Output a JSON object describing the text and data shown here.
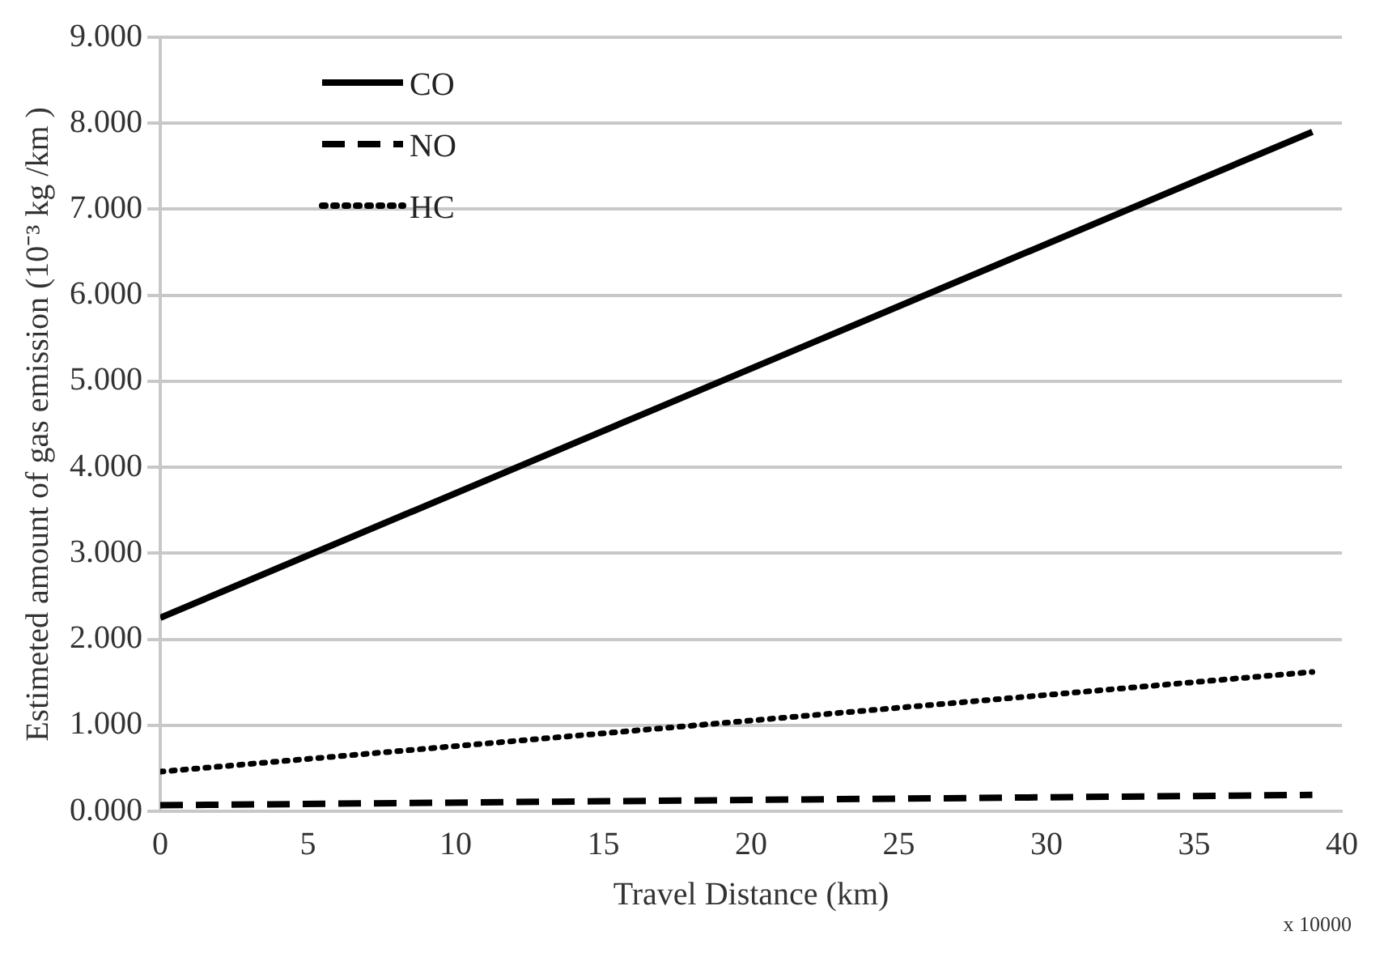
{
  "chart_data": {
    "type": "line",
    "xlabel": "Travel Distance (km)",
    "ylabel": "Estimeted amount of gas emission (10⁻³ kg /km )",
    "x": [
      0,
      39
    ],
    "series": [
      {
        "name": "CO",
        "color": "#000000",
        "values": [
          2.25,
          7.9
        ],
        "line_style": "solid"
      },
      {
        "name": "NO",
        "color": "#000000",
        "values": [
          0.07,
          0.19
        ],
        "line_style": "dashed"
      },
      {
        "name": "HC",
        "color": "#000000",
        "values": [
          0.46,
          1.62
        ],
        "line_style": "dotted"
      }
    ],
    "xlim": [
      0,
      40
    ],
    "xticks": [
      0,
      5,
      10,
      15,
      20,
      25,
      30,
      35,
      40
    ],
    "ylim": [
      0,
      9
    ],
    "yticks": [
      {
        "value": 0,
        "label": "0.000"
      },
      {
        "value": 1,
        "label": "1.000"
      },
      {
        "value": 2,
        "label": "2.000"
      },
      {
        "value": 3,
        "label": "3.000"
      },
      {
        "value": 4,
        "label": "4.000"
      },
      {
        "value": 5,
        "label": "5.000"
      },
      {
        "value": 6,
        "label": "6.000"
      },
      {
        "value": 7,
        "label": "7.000"
      },
      {
        "value": 8,
        "label": "8.000"
      },
      {
        "value": 9,
        "label": "9.000"
      }
    ],
    "grid": "y",
    "legend": "top left",
    "marker": "none",
    "annotations": [
      "x 10000"
    ]
  }
}
